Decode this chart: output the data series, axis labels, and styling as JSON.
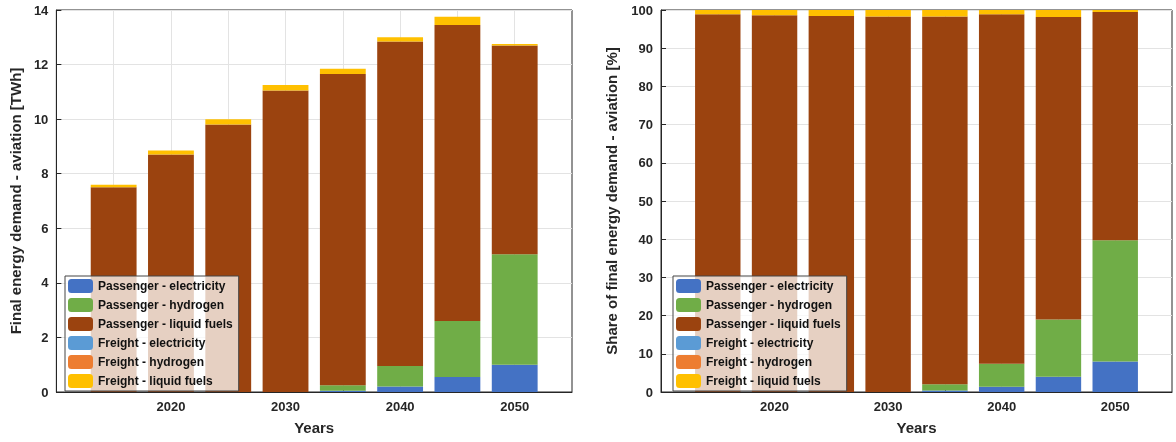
{
  "chart_data": [
    {
      "type": "bar",
      "stacked": true,
      "xlabel": "Years",
      "ylabel": "Final energy demand - aviation [TWh]",
      "x": [
        2015,
        2020,
        2025,
        2030,
        2035,
        2040,
        2045,
        2050
      ],
      "xlim": [
        2010,
        2055
      ],
      "xticks": [
        {
          "value": 2015,
          "label": null
        },
        2020,
        {
          "value": 2025,
          "label": null
        },
        2030,
        {
          "value": 2035,
          "label": null
        },
        2040,
        {
          "value": 2045,
          "label": null
        },
        2050
      ],
      "ylim": [
        0,
        14
      ],
      "yticks": [
        0,
        2,
        4,
        6,
        8,
        10,
        12,
        14
      ],
      "grid": true,
      "legend": "bottom left",
      "series": [
        {
          "name": "Passenger - electricity",
          "color": "#4472c4",
          "values": [
            0,
            0,
            0,
            0,
            0.05,
            0.2,
            0.55,
            1.0
          ]
        },
        {
          "name": "Passenger - hydrogen",
          "color": "#70ad47",
          "values": [
            0,
            0,
            0,
            0,
            0.2,
            0.75,
            2.05,
            4.05
          ]
        },
        {
          "name": "Passenger - liquid fuels",
          "color": "#9b430f",
          "values": [
            7.5,
            8.7,
            9.8,
            11.05,
            11.4,
            11.9,
            10.85,
            7.65
          ]
        },
        {
          "name": "Freight - electricity",
          "color": "#5b9bd5",
          "values": [
            0,
            0,
            0,
            0,
            0,
            0,
            0,
            0
          ]
        },
        {
          "name": "Freight - hydrogen",
          "color": "#ed7d31",
          "values": [
            0,
            0,
            0,
            0,
            0,
            0,
            0,
            0
          ]
        },
        {
          "name": "Freight - liquid fuels",
          "color": "#ffc000",
          "values": [
            0.1,
            0.15,
            0.2,
            0.2,
            0.2,
            0.15,
            0.3,
            0.05
          ]
        }
      ]
    },
    {
      "type": "bar",
      "stacked": true,
      "xlabel": "Years",
      "ylabel": "Share of final energy demand - aviation [%]",
      "x": [
        2015,
        2020,
        2025,
        2030,
        2035,
        2040,
        2045,
        2050
      ],
      "xlim": [
        2010,
        2055
      ],
      "xticks": [
        {
          "value": 2015,
          "label": null
        },
        2020,
        {
          "value": 2025,
          "label": null
        },
        2030,
        {
          "value": 2035,
          "label": null
        },
        2040,
        {
          "value": 2045,
          "label": null
        },
        2050
      ],
      "ylim": [
        0,
        100
      ],
      "yticks": [
        0,
        10,
        20,
        30,
        40,
        50,
        60,
        70,
        80,
        90,
        100
      ],
      "grid": true,
      "legend": "bottom left",
      "series": [
        {
          "name": "Passenger - electricity",
          "color": "#4472c4",
          "values": [
            0,
            0,
            0,
            0,
            0.4,
            1.4,
            4,
            8
          ]
        },
        {
          "name": "Passenger - hydrogen",
          "color": "#70ad47",
          "values": [
            0,
            0,
            0,
            0,
            1.6,
            6,
            15,
            31.7
          ]
        },
        {
          "name": "Passenger - liquid fuels",
          "color": "#9b430f",
          "values": [
            98.9,
            98.6,
            98.4,
            98.3,
            96.3,
            91.5,
            79.2,
            59.8
          ]
        },
        {
          "name": "Freight - electricity",
          "color": "#5b9bd5",
          "values": [
            0,
            0,
            0,
            0,
            0,
            0,
            0,
            0
          ]
        },
        {
          "name": "Freight - hydrogen",
          "color": "#ed7d31",
          "values": [
            0,
            0,
            0,
            0,
            0,
            0,
            0,
            0
          ]
        },
        {
          "name": "Freight - liquid fuels",
          "color": "#ffc000",
          "values": [
            1.1,
            1.4,
            1.6,
            1.7,
            1.7,
            1.1,
            1.8,
            0.5
          ]
        }
      ]
    }
  ]
}
